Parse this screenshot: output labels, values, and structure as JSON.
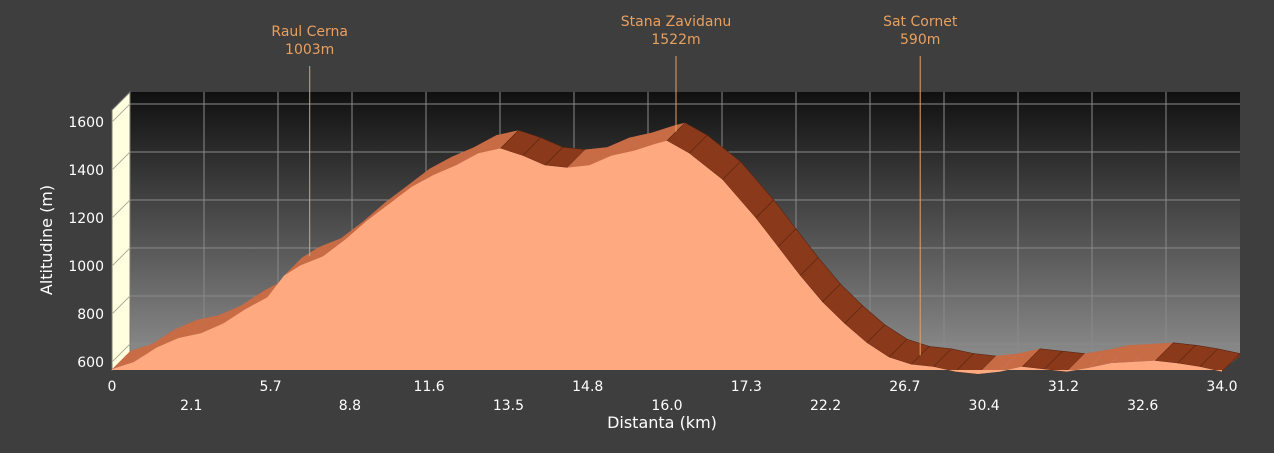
{
  "chart_data": {
    "type": "area",
    "title": "",
    "xlabel": "Distanta (km)",
    "ylabel": "Altitudine (m)",
    "ylim": [
      550,
      1650
    ],
    "yticks": [
      600,
      800,
      1000,
      1200,
      1400,
      1600
    ],
    "xtick_labels_top": [
      "0",
      "5.7",
      "11.6",
      "14.8",
      "17.3",
      "26.7",
      "31.2",
      "34.0"
    ],
    "xtick_labels_bottom": [
      "2.1",
      "8.8",
      "13.5",
      "16.0",
      "22.2",
      "30.4",
      "32.6"
    ],
    "grid": true,
    "series": [
      {
        "x": [
          0,
          0.02,
          0.04,
          0.06,
          0.08,
          0.1,
          0.12,
          0.14,
          0.155,
          0.17,
          0.19,
          0.21,
          0.23,
          0.25,
          0.27,
          0.29,
          0.31,
          0.33,
          0.35,
          0.37,
          0.39,
          0.41,
          0.43,
          0.45,
          0.47,
          0.49,
          0.5,
          0.52,
          0.55,
          0.58,
          0.6,
          0.62,
          0.64,
          0.66,
          0.68,
          0.7,
          0.72,
          0.74,
          0.76,
          0.78,
          0.8,
          0.82,
          0.84,
          0.86,
          0.88,
          0.9,
          0.92,
          0.94,
          0.96,
          0.98,
          1.0
        ],
        "y": [
          570,
          600,
          660,
          700,
          720,
          760,
          820,
          870,
          960,
          1003,
          1040,
          1110,
          1190,
          1260,
          1330,
          1380,
          1420,
          1470,
          1490,
          1460,
          1420,
          1410,
          1420,
          1460,
          1480,
          1510,
          1522,
          1470,
          1360,
          1200,
          1080,
          960,
          850,
          760,
          680,
          620,
          590,
          580,
          560,
          550,
          560,
          580,
          570,
          560,
          575,
          595,
          600,
          605,
          595,
          580,
          560
        ]
      }
    ],
    "annotations": [
      {
        "label": "Raul Cerna",
        "value": "1003m",
        "x": 0.17,
        "y": 1003
      },
      {
        "label": "Stana Zavidanu",
        "value": "1522m",
        "x": 0.5,
        "y": 1522
      },
      {
        "label": "Sat Cornet",
        "value": "590m",
        "x": 0.72,
        "y": 590
      }
    ]
  }
}
